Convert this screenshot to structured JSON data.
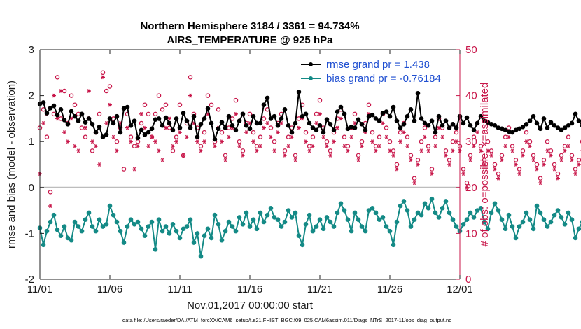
{
  "chart_data": {
    "type": "line",
    "title": "Northern Hemisphere 3184 / 3361 = 94.734%",
    "subtitle": "AIRS_TEMPERATURE @ 925 hPa",
    "xlabel": "Nov.01,2017 00:00:00 start",
    "ylabel": "rmse and bias (model - observation)",
    "y2label": "# of obs: o=possible; ×=assimilated",
    "ylim": [
      -2,
      3
    ],
    "y2lim": [
      0,
      50
    ],
    "xlim": [
      0,
      30
    ],
    "xticks": [
      0,
      5,
      10,
      15,
      20,
      25,
      30
    ],
    "xtick_labels": [
      "11/01",
      "11/06",
      "11/11",
      "11/16",
      "11/21",
      "11/26",
      "12/01"
    ],
    "yticks": [
      -2,
      -1,
      0,
      1,
      2,
      3
    ],
    "ytick_labels": [
      "-2",
      "-1",
      "0",
      "1",
      "2",
      "3"
    ],
    "y2ticks": [
      0,
      10,
      20,
      30,
      40,
      50
    ],
    "y2tick_labels": [
      "0",
      "10",
      "20",
      "30",
      "40",
      "50"
    ],
    "zero_line": 0,
    "legend_position": "top-right",
    "footer": "data file: /Users/raeder/DAI/ATM_forcXX/CAM6_setup/f.e21.FHIST_BGC.f09_025.CAM6assim.011/Diags_NTrS_2017-11/obs_diag_output.nc",
    "x_step_days": 0.25,
    "series": [
      {
        "name": "rmse grand pr = 1.438",
        "axis": "left",
        "color": "#000000",
        "marker": "filled-circle",
        "values": [
          1.82,
          1.85,
          1.62,
          1.73,
          1.78,
          1.58,
          1.7,
          1.47,
          1.38,
          1.66,
          1.55,
          1.45,
          1.6,
          1.42,
          1.5,
          1.38,
          1.2,
          1.32,
          1.1,
          1.15,
          1.5,
          1.4,
          1.55,
          1.2,
          1.72,
          1.75,
          1.35,
          1.45,
          1.08,
          1.25,
          1.15,
          1.2,
          1.28,
          1.48,
          1.5,
          1.35,
          1.52,
          1.4,
          1.25,
          1.5,
          1.3,
          1.62,
          1.45,
          1.3,
          1.55,
          1.1,
          1.38,
          1.5,
          1.72,
          1.4,
          1.05,
          1.28,
          1.42,
          1.3,
          1.55,
          1.35,
          1.25,
          1.45,
          1.6,
          1.35,
          1.28,
          1.55,
          1.4,
          1.4,
          1.8,
          1.95,
          1.5,
          1.55,
          1.35,
          1.5,
          1.7,
          1.35,
          1.2,
          1.4,
          2.08,
          1.55,
          1.6,
          1.4,
          1.3,
          1.25,
          1.35,
          1.2,
          1.48,
          1.38,
          1.25,
          1.65,
          1.75,
          1.6,
          1.28,
          1.32,
          1.3,
          1.48,
          1.38,
          1.25,
          1.55,
          1.58,
          1.5,
          1.45,
          1.62,
          1.65,
          1.55,
          1.75,
          1.45,
          1.3,
          1.38,
          1.55,
          1.7,
          1.45,
          2.05,
          1.5,
          1.4,
          1.35,
          1.45,
          1.2,
          1.55,
          1.35,
          1.45,
          1.3,
          1.38,
          1.3,
          1.55,
          1.4,
          1.52,
          1.35,
          1.25,
          1.4,
          1.55,
          1.45,
          1.42,
          1.38,
          1.35,
          1.3,
          1.28,
          1.25,
          1.22,
          1.2,
          1.25,
          1.28,
          1.32,
          1.38,
          1.45,
          1.55,
          1.4,
          1.28,
          1.5,
          1.3,
          1.42,
          1.35,
          1.3,
          1.25,
          1.3,
          1.35,
          1.4,
          1.6,
          1.45,
          1.35,
          1.5,
          1.4,
          1.25,
          1.32,
          1.6,
          1.4,
          1.45,
          1.3,
          1.52,
          1.5,
          1.45,
          1.42,
          1.5,
          1.35,
          1.3,
          1.35,
          1.45,
          1.3,
          1.4,
          1.6,
          1.6,
          1.3,
          1.45,
          1.35,
          1.42,
          1.48,
          1.35,
          1.3,
          1.6,
          1.5,
          1.25,
          1.3,
          1.38,
          1.35,
          1.45,
          1.55,
          1.6,
          1.35,
          1.25,
          1.35,
          1.52,
          1.48,
          1.35,
          1.4,
          1.45,
          1.55,
          1.5,
          1.4,
          1.22,
          1.3,
          1.45,
          1.25,
          1.05,
          1.25,
          1.55,
          1.75,
          1.2,
          1.3,
          1.45,
          1.65,
          1.55,
          1.4,
          1.65,
          1.45,
          1.3,
          1.4,
          1.25,
          1.38,
          1.32,
          1.48,
          1.4,
          1.2,
          1.3,
          1.35,
          1.55,
          1.4,
          1.5,
          1.48,
          1.3,
          1.55,
          1.6,
          1.58,
          1.4,
          1.38,
          1.42,
          1.52,
          1.35,
          1.5,
          1.45,
          1.62,
          1.55,
          1.4,
          1.35,
          1.38,
          1.32,
          1.4,
          1.45,
          1.35,
          1.3,
          1.38,
          1.45,
          1.6,
          1.5,
          1.4,
          1.48,
          1.55,
          1.62,
          1.6,
          1.5,
          1.45,
          1.4,
          1.38,
          1.35,
          1.4
        ]
      },
      {
        "name": "bias grand pr = -0.76184",
        "axis": "left",
        "color": "#148a86",
        "marker": "filled-circle",
        "values": [
          -0.88,
          -1.25,
          -0.95,
          -0.75,
          -0.6,
          -0.92,
          -1.05,
          -0.85,
          -1.1,
          -1.15,
          -0.75,
          -0.85,
          -0.95,
          -0.7,
          -0.55,
          -0.85,
          -0.95,
          -0.7,
          -0.85,
          -0.8,
          -0.4,
          -0.6,
          -0.75,
          -0.95,
          -1.2,
          -0.85,
          -0.7,
          -0.8,
          -0.75,
          -0.9,
          -1.05,
          -0.85,
          -0.75,
          -1.35,
          -0.7,
          -0.95,
          -0.85,
          -1.0,
          -0.8,
          -0.95,
          -1.1,
          -0.9,
          -0.85,
          -0.7,
          -1.2,
          -1.0,
          -1.5,
          -1.05,
          -0.9,
          -1.1,
          -0.6,
          -0.8,
          -1.15,
          -0.95,
          -0.75,
          -0.85,
          -0.95,
          -0.65,
          -0.8,
          -0.55,
          -0.85,
          -0.7,
          -0.9,
          -0.55,
          -0.75,
          -0.6,
          -0.45,
          -0.65,
          -0.7,
          -0.85,
          -0.75,
          -0.5,
          -0.65,
          -0.55,
          -1.05,
          -1.25,
          -0.8,
          -0.6,
          -0.95,
          -0.85,
          -0.7,
          -0.9,
          -0.65,
          -0.75,
          -0.85,
          -0.55,
          -0.35,
          -0.5,
          -0.7,
          -0.95,
          -0.55,
          -0.7,
          -0.85,
          -0.95,
          -0.5,
          -0.45,
          -0.55,
          -0.7,
          -0.65,
          -0.85,
          -0.95,
          -1.25,
          -0.75,
          -0.4,
          -0.3,
          -0.5,
          -0.85,
          -0.7,
          -0.55,
          -0.6,
          -0.35,
          -0.45,
          -0.25,
          -0.55,
          -0.65,
          -0.45,
          -0.3,
          -0.55,
          -0.7,
          -0.85,
          -0.95,
          -0.8,
          -0.7,
          -0.55,
          -0.65,
          -0.5,
          -0.45,
          -0.75,
          -0.9,
          -0.55,
          -0.35,
          -0.5,
          -0.7,
          -0.9,
          -0.6,
          -0.85,
          -1.1,
          -0.85,
          -0.75,
          -0.55,
          -0.7,
          -0.9,
          -0.4,
          -0.55,
          -0.7,
          -0.85,
          -0.75,
          -0.6,
          -0.5,
          -0.65,
          -0.8,
          -0.55,
          -0.7,
          -1.1,
          -0.9,
          -0.75,
          -0.8,
          -0.65,
          -0.5,
          -0.55,
          -0.8,
          -0.9,
          -0.75,
          -0.65,
          -0.85,
          -0.7,
          -0.95,
          -0.6,
          -0.55,
          -0.7,
          -0.85,
          -0.75,
          -0.6,
          -0.55,
          -0.7,
          -0.85,
          -0.95,
          -0.7,
          -0.55,
          -0.6,
          -0.5,
          -0.75,
          -0.95,
          -0.65,
          -0.55,
          -0.7,
          -0.9,
          -0.75,
          -0.6,
          -0.45,
          -0.55,
          -0.85,
          -0.7,
          -0.55,
          -0.65,
          -0.8,
          -0.4,
          -0.55,
          -0.75,
          -0.65,
          -0.85,
          -0.95,
          -0.7,
          -0.55,
          -0.5,
          -0.65,
          -1.25,
          -0.75,
          -0.6,
          -0.25,
          -0.55,
          -0.65,
          -0.85,
          -0.7,
          -0.55,
          -0.45,
          -0.65,
          -0.85,
          -0.95,
          -0.75,
          -0.6,
          -0.7,
          -0.85,
          -0.55,
          -0.65,
          -0.8,
          -0.7,
          -0.9,
          -0.75,
          -0.65,
          -0.55,
          -0.7,
          -0.85,
          -0.6,
          -0.75,
          -0.65,
          -0.9,
          -0.8,
          -0.7,
          -0.85,
          -0.6,
          -0.75,
          -0.95,
          -0.7,
          -0.85,
          -0.8,
          -0.7,
          -0.75,
          -0.9,
          -0.85,
          -0.8,
          -0.82,
          -0.88,
          -0.9
        ]
      },
      {
        "name": "# obs possible",
        "axis": "right",
        "color": "#c8174a",
        "marker": "open-circle",
        "values": [
          33,
          37,
          31,
          19,
          36,
          44,
          35,
          41,
          34,
          40,
          38,
          36,
          33,
          31,
          35,
          28,
          32,
          36,
          45,
          41,
          42,
          35,
          30,
          33,
          24,
          36,
          31,
          29,
          30,
          34,
          38,
          36,
          31,
          36,
          40,
          37,
          38,
          33,
          28,
          31,
          38,
          27,
          34,
          44,
          36,
          33,
          29,
          32,
          40,
          38,
          30,
          37,
          32,
          27,
          33,
          35,
          39,
          30,
          28,
          34,
          36,
          32,
          29,
          31,
          35,
          37,
          33,
          30,
          34,
          36,
          28,
          31,
          33,
          27,
          35,
          38,
          32,
          29,
          31,
          36,
          39,
          33,
          30,
          28,
          32,
          35,
          37,
          31,
          29,
          33,
          36,
          27,
          30,
          34,
          38,
          32,
          29,
          31,
          36,
          33,
          30,
          28,
          25,
          32,
          34,
          31,
          27,
          22,
          26,
          30,
          33,
          29,
          24,
          31,
          35,
          33,
          28,
          26,
          30,
          32,
          29,
          24,
          21,
          27,
          31,
          34,
          29,
          26,
          30,
          28,
          25,
          23,
          27,
          31,
          33,
          29,
          26,
          24,
          28,
          32,
          30,
          27,
          25,
          22,
          26,
          30,
          28,
          25,
          23,
          27,
          29,
          31,
          27,
          24,
          26,
          30,
          28,
          25,
          22,
          24,
          28,
          30,
          27,
          25,
          23,
          22,
          20,
          24,
          28,
          26,
          23,
          21,
          25,
          29,
          27,
          24,
          22,
          26,
          28,
          30,
          27,
          25,
          23,
          21,
          24,
          28,
          26,
          23,
          21,
          22,
          26,
          30,
          28,
          25,
          23,
          21,
          24,
          27,
          26,
          24,
          22,
          20,
          23,
          27,
          29,
          26,
          24,
          22,
          21,
          25,
          28,
          26,
          24,
          22,
          20,
          23,
          27,
          30,
          28,
          25,
          23,
          21,
          24,
          28,
          29,
          27,
          25,
          23,
          22,
          20,
          24,
          28,
          30,
          29,
          27,
          25,
          28,
          31,
          30,
          29,
          28,
          30,
          29,
          28,
          27,
          29,
          31,
          30,
          28,
          29,
          30,
          31,
          29,
          28,
          30,
          31,
          29,
          30,
          28,
          29,
          31,
          30,
          30,
          0
        ]
      },
      {
        "name": "# obs assimilated",
        "axis": "right",
        "color": "#c8174a",
        "marker": "asterisk",
        "values": [
          23,
          34,
          36,
          16,
          40,
          35,
          41,
          32,
          30,
          35,
          29,
          28,
          36,
          33,
          41,
          30,
          29,
          25,
          44,
          34,
          38,
          31,
          28,
          34,
          37,
          33,
          30,
          24,
          29,
          36,
          33,
          29,
          31,
          30,
          28,
          26,
          33,
          35,
          29,
          30,
          32,
          27,
          31,
          40,
          34,
          30,
          28,
          30,
          36,
          34,
          29,
          33,
          30,
          26,
          31,
          33,
          36,
          29,
          27,
          32,
          34,
          30,
          28,
          29,
          33,
          34,
          31,
          28,
          32,
          34,
          27,
          29,
          31,
          26,
          33,
          35,
          30,
          28,
          29,
          34,
          36,
          31,
          29,
          27,
          30,
          33,
          35,
          29,
          28,
          31,
          34,
          26,
          29,
          32,
          36,
          30,
          28,
          29,
          34,
          31,
          28,
          27,
          24,
          30,
          32,
          29,
          26,
          21,
          25,
          28,
          31,
          28,
          23,
          29,
          33,
          31,
          27,
          25,
          28,
          30,
          28,
          23,
          20,
          26,
          29,
          32,
          28,
          25,
          28,
          27,
          24,
          22,
          26,
          29,
          31,
          28,
          25,
          23,
          27,
          30,
          29,
          26,
          24,
          21,
          25,
          28,
          27,
          24,
          22,
          26,
          28,
          29,
          26,
          23,
          25,
          28,
          27,
          24,
          21,
          23,
          27,
          28,
          26,
          24,
          22,
          21,
          19,
          23,
          27,
          25,
          22,
          20,
          24,
          27,
          26,
          23,
          21,
          25,
          27,
          28,
          26,
          24,
          22,
          20,
          23,
          27,
          25,
          22,
          20,
          21,
          25,
          28,
          27,
          24,
          22,
          20,
          23,
          26,
          25,
          23,
          21,
          19,
          22,
          26,
          27,
          25,
          23,
          21,
          20,
          24,
          27,
          25,
          23,
          21,
          19,
          22,
          26,
          28,
          27,
          24,
          22,
          20,
          23,
          27,
          28,
          26,
          24,
          22,
          21,
          19,
          23,
          27,
          29,
          28,
          26,
          24,
          27,
          30,
          29,
          28,
          27,
          29,
          28,
          27,
          26,
          28,
          30,
          29,
          27,
          28,
          29,
          30,
          28,
          27,
          29,
          30,
          28,
          29,
          27,
          28,
          30,
          29,
          29,
          0
        ]
      }
    ]
  }
}
